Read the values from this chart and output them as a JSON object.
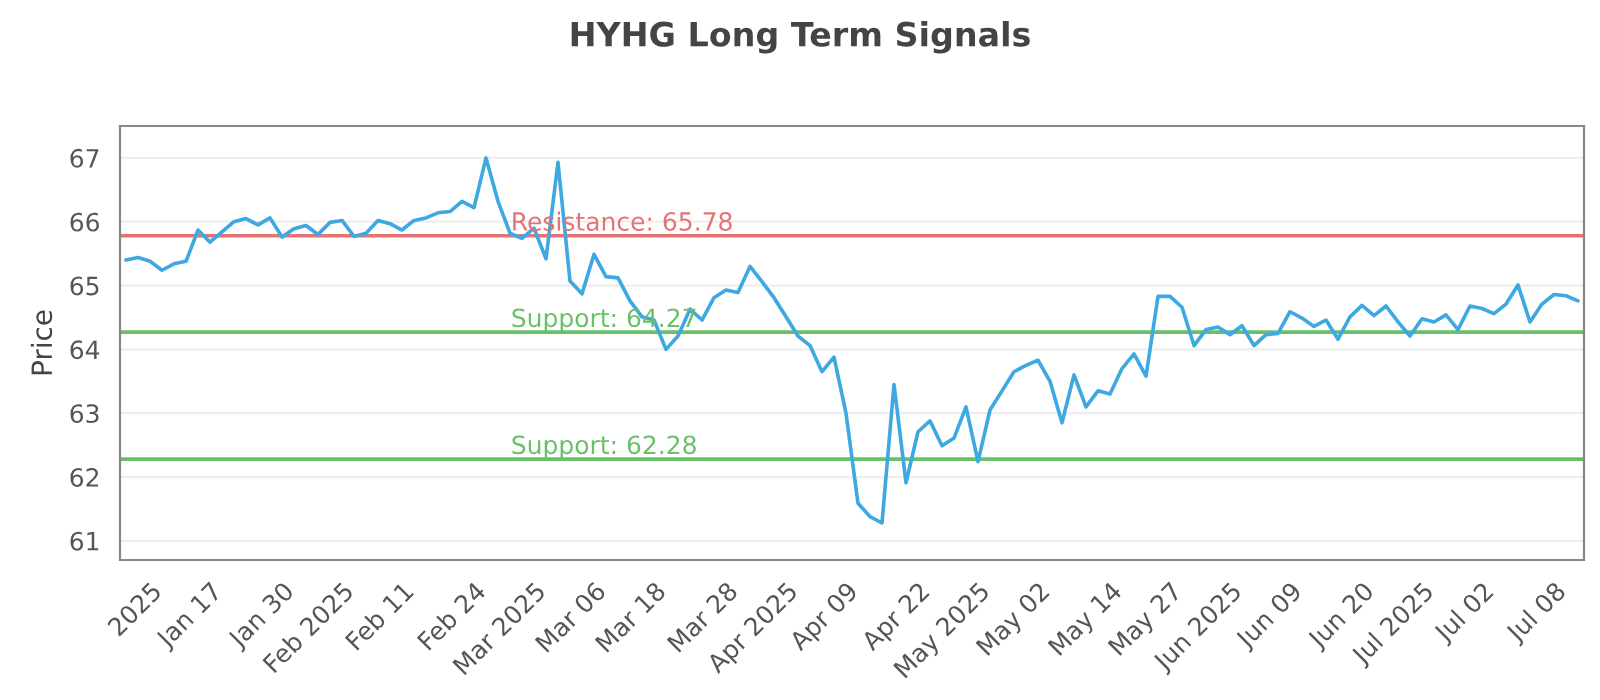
{
  "chart_data": {
    "type": "line",
    "title": "HYHG Long Term Signals",
    "ylabel": "Price",
    "ylim": [
      60.7,
      67.5
    ],
    "yticks": [
      61,
      62,
      63,
      64,
      65,
      66,
      67
    ],
    "grid": "y",
    "legend": false,
    "marker": "none",
    "line_style": "solid",
    "categories": [
      null,
      null,
      "2025",
      null,
      null,
      null,
      null,
      "Jan 17",
      null,
      null,
      null,
      null,
      null,
      "Jan 30",
      null,
      null,
      null,
      null,
      "Feb 2025",
      null,
      null,
      null,
      null,
      "Feb 11",
      null,
      null,
      null,
      null,
      null,
      "Feb 24",
      null,
      null,
      null,
      null,
      "Mar 2025",
      null,
      null,
      null,
      null,
      "Mar 06",
      null,
      null,
      null,
      null,
      "Mar 18",
      null,
      null,
      null,
      null,
      null,
      "Mar 28",
      null,
      null,
      null,
      null,
      "Apr 2025",
      null,
      null,
      null,
      null,
      "Apr 09",
      null,
      null,
      null,
      null,
      null,
      "Apr 22",
      null,
      null,
      null,
      null,
      "May 2025",
      null,
      null,
      null,
      null,
      "May 02",
      null,
      null,
      null,
      null,
      null,
      "May 14",
      null,
      null,
      null,
      null,
      "May 27",
      null,
      null,
      null,
      null,
      "Jun 2025",
      null,
      null,
      null,
      null,
      "Jun 09",
      null,
      null,
      null,
      null,
      null,
      "Jun 20",
      null,
      null,
      null,
      null,
      "Jul 2025",
      null,
      null,
      null,
      null,
      "Jul 02",
      null,
      null,
      null,
      null,
      null,
      "Jul 08",
      null,
      null
    ],
    "series": [
      {
        "color": "#3ea8e0",
        "values": [
          65.4,
          65.44,
          65.38,
          65.24,
          65.34,
          65.38,
          65.87,
          65.68,
          65.84,
          66.0,
          66.05,
          65.95,
          66.06,
          65.76,
          65.89,
          65.94,
          65.8,
          65.99,
          66.02,
          65.77,
          65.82,
          66.02,
          65.97,
          65.87,
          66.02,
          66.06,
          66.14,
          66.16,
          66.32,
          66.22,
          67.0,
          66.32,
          65.82,
          65.74,
          65.9,
          65.42,
          66.93,
          65.07,
          64.87,
          65.49,
          65.14,
          65.12,
          64.76,
          64.51,
          64.46,
          64.0,
          64.21,
          64.63,
          64.46,
          64.81,
          64.93,
          64.89,
          65.3,
          65.06,
          64.81,
          64.51,
          64.21,
          64.06,
          63.65,
          63.88,
          63.0,
          61.59,
          61.38,
          61.28,
          63.45,
          61.91,
          62.71,
          62.88,
          62.49,
          62.61,
          63.1,
          62.24,
          63.05,
          63.35,
          63.65,
          63.75,
          63.83,
          63.5,
          62.85,
          63.6,
          63.1,
          63.35,
          63.3,
          63.7,
          63.93,
          63.58,
          64.83,
          64.83,
          64.66,
          64.06,
          64.31,
          64.35,
          64.23,
          64.37,
          64.06,
          64.23,
          64.25,
          64.59,
          64.49,
          64.36,
          64.46,
          64.16,
          64.51,
          64.69,
          64.53,
          64.68,
          64.43,
          64.21,
          64.48,
          64.43,
          64.54,
          64.31,
          64.68,
          64.64,
          64.56,
          64.71,
          65.01,
          64.43,
          64.71,
          64.86,
          64.84,
          64.76
        ]
      }
    ],
    "ref_lines": [
      {
        "axis": "y",
        "value": 65.78,
        "label": "Resistance: 65.78",
        "color": "#e57373"
      },
      {
        "axis": "y",
        "value": 64.27,
        "label": "Support: 64.27",
        "color": "#6abf69"
      },
      {
        "axis": "y",
        "value": 62.28,
        "label": "Support: 62.28",
        "color": "#6abf69"
      }
    ]
  }
}
